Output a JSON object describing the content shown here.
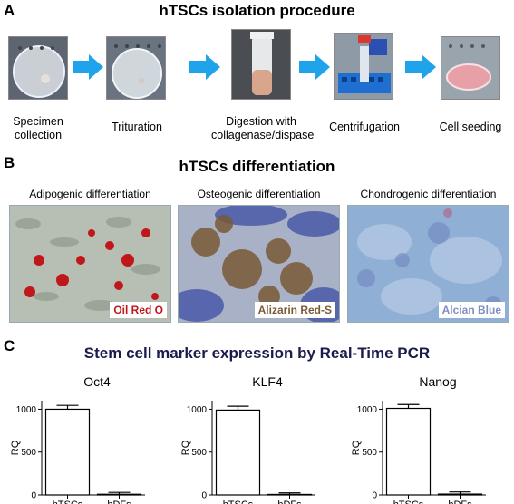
{
  "panel_a": {
    "letter": "A",
    "title": "hTSCs isolation procedure",
    "steps": [
      {
        "label_lines": [
          "Specimen",
          "collection"
        ],
        "icon": "petri-dish-specimen"
      },
      {
        "label_lines": [
          "Trituration"
        ],
        "icon": "petri-dish-minced"
      },
      {
        "label_lines": [
          "Digestion with",
          "collagenase/dispase"
        ],
        "icon": "tube-digestion"
      },
      {
        "label_lines": [
          "Centrifugation"
        ],
        "icon": "tube-rack"
      },
      {
        "label_lines": [
          "Cell seeding"
        ],
        "icon": "culture-dish"
      }
    ],
    "arrow_color": "#1fa3ea"
  },
  "panel_b": {
    "letter": "B",
    "title": "hTSCs differentiation",
    "items": [
      {
        "label": "Adipogenic differentiation",
        "stain": "Oil Red O",
        "stain_color": "#c0171a"
      },
      {
        "label": "Osteogenic differentiation",
        "stain": "Alizarin Red-S",
        "stain_color": "#7a5a36"
      },
      {
        "label": "Chondrogenic differentiation",
        "stain": "Alcian Blue",
        "stain_color": "#7d8fc4"
      }
    ]
  },
  "panel_c": {
    "letter": "C",
    "title": "Stem cell marker expression by Real-Time PCR",
    "title_color": "#1b1b4d"
  },
  "chart_data": [
    {
      "type": "bar",
      "title": "Oct4",
      "ylabel": "RQ",
      "categories": [
        "hTSCs",
        "hDFs"
      ],
      "values": [
        1000,
        8
      ],
      "errors": [
        45,
        22
      ],
      "ylim": [
        0,
        1100
      ],
      "yticks": [
        0,
        500,
        1000
      ]
    },
    {
      "type": "bar",
      "title": "KLF4",
      "ylabel": "RQ",
      "categories": [
        "hTSCs",
        "hDFs"
      ],
      "values": [
        990,
        6
      ],
      "errors": [
        45,
        18
      ],
      "ylim": [
        0,
        1100
      ],
      "yticks": [
        0,
        500,
        1000
      ]
    },
    {
      "type": "bar",
      "title": "Nanog",
      "ylabel": "RQ",
      "categories": [
        "hTSCs",
        "hDFs"
      ],
      "values": [
        1010,
        10
      ],
      "errors": [
        45,
        25
      ],
      "ylim": [
        0,
        1100
      ],
      "yticks": [
        0,
        500,
        1000
      ]
    }
  ]
}
